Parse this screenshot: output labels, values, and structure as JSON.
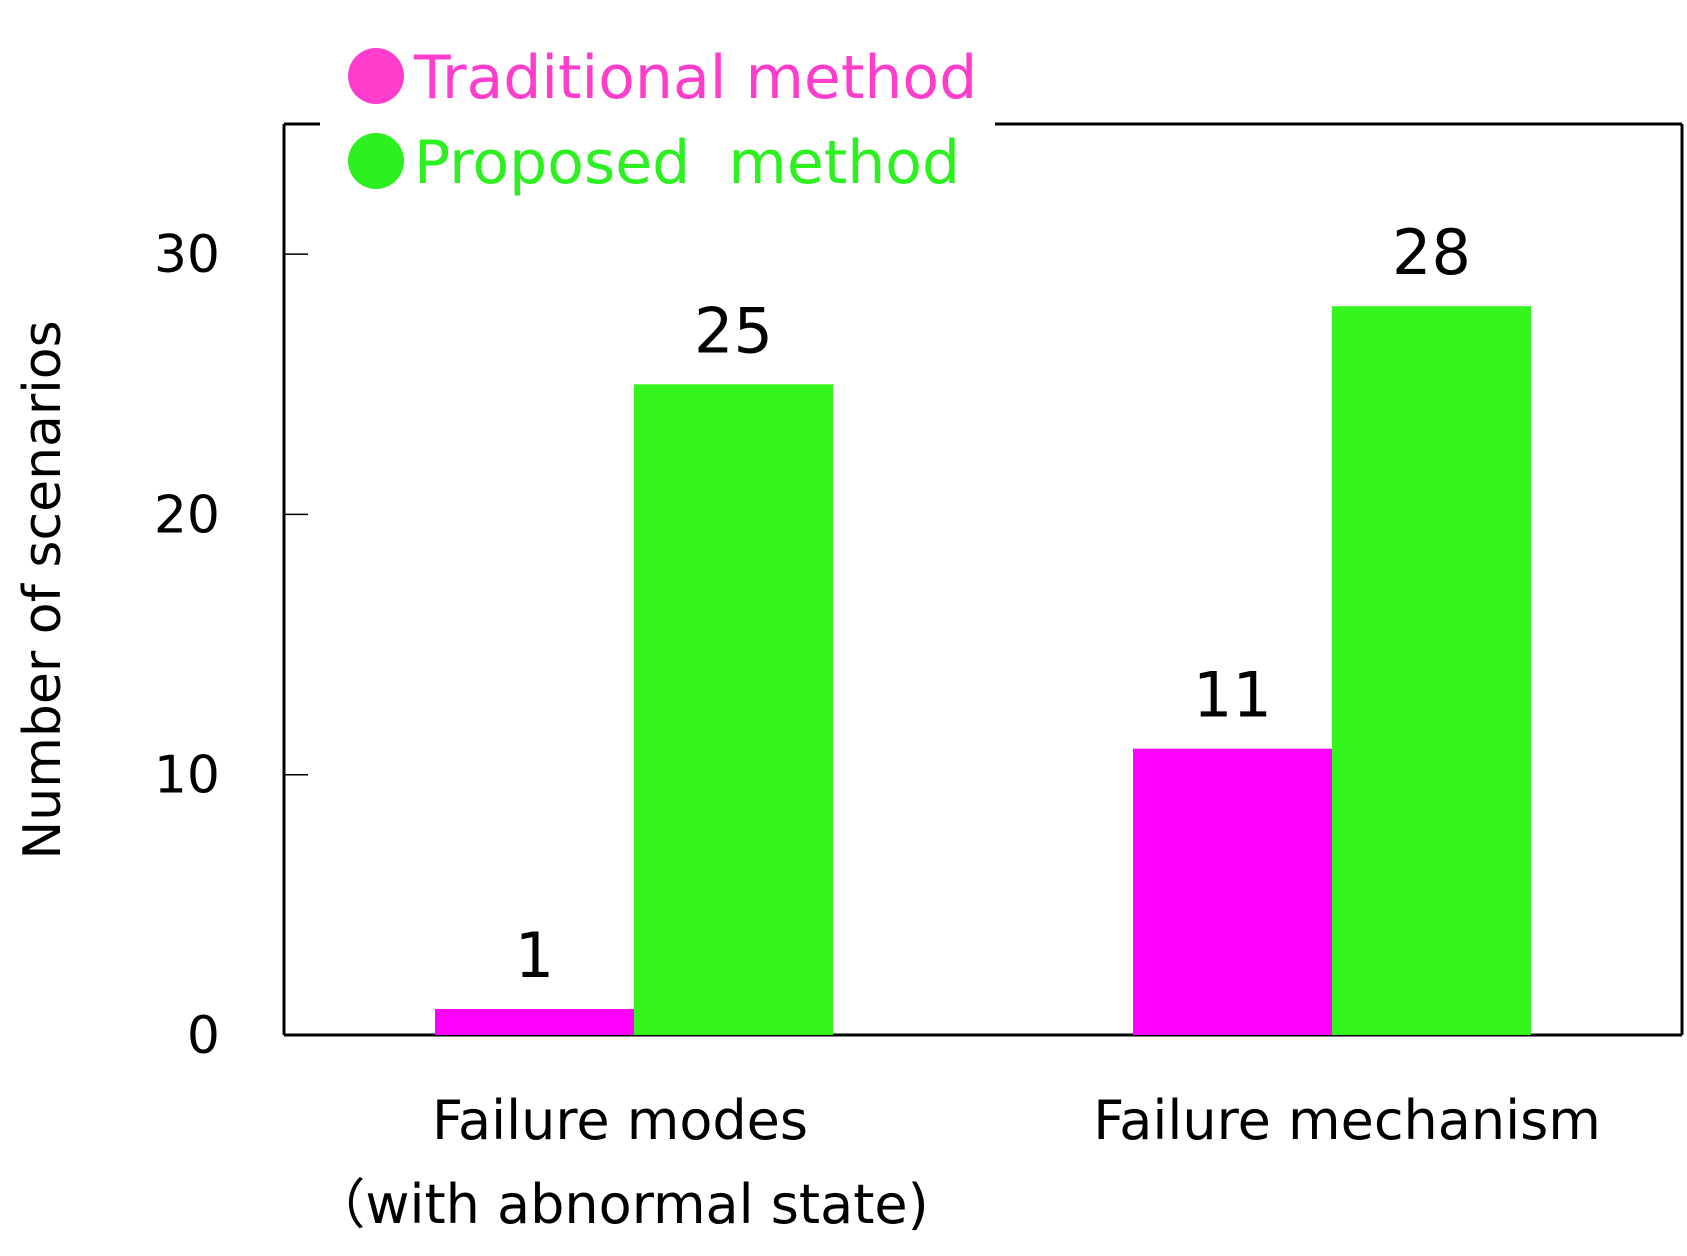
{
  "chart_data": {
    "type": "bar",
    "categories": [
      [
        "Failure modes",
        "（with abnormal state)"
      ],
      [
        "Failure mechanism"
      ]
    ],
    "series": [
      {
        "name": "Traditional method",
        "values": [
          1,
          11
        ],
        "color": "#ff00ff",
        "legend_color": "#ff3dcc"
      },
      {
        "name": "Proposed  method",
        "values": [
          25,
          28
        ],
        "color": "#33f51d",
        "legend_color": "#2cf020"
      }
    ],
    "ylabel": "Number of scenarios",
    "xlabel": "",
    "ylim": [
      0,
      35
    ],
    "yticks": [
      0,
      10,
      20,
      30
    ],
    "grid": false,
    "legend_position": "top-left, overlapping the top border",
    "data_labels": true
  }
}
